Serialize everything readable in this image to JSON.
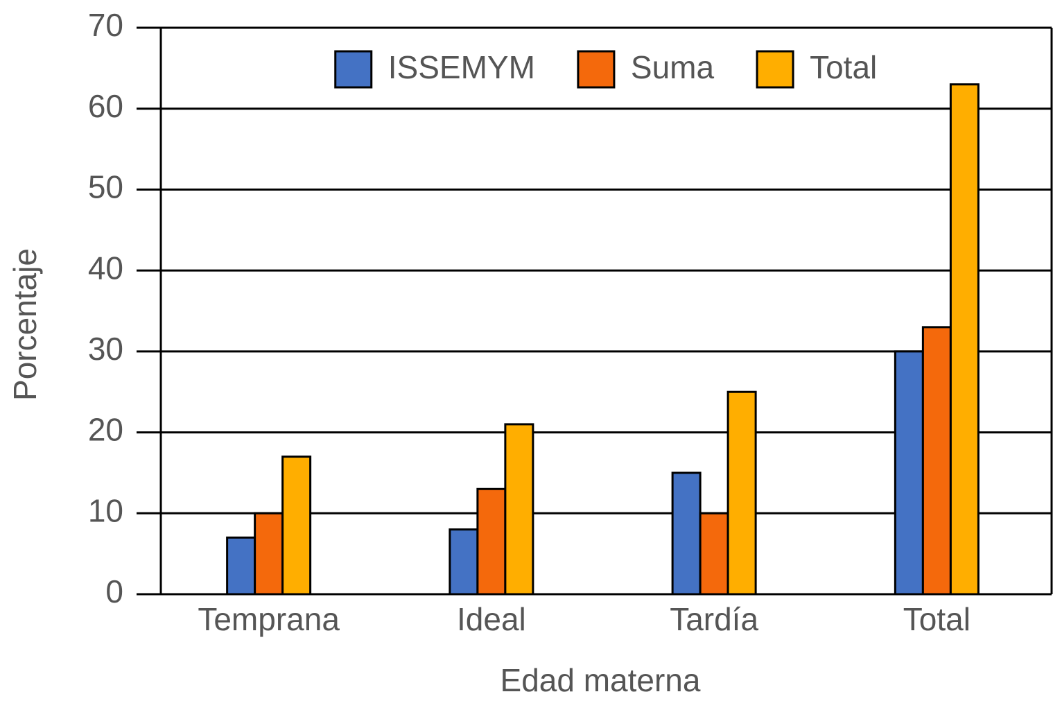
{
  "chart_data": {
    "type": "bar",
    "x_label": "Edad materna",
    "y_label": "Porcentaje",
    "categories": [
      "Temprana",
      "Ideal",
      "Tardía",
      "Total"
    ],
    "series": [
      {
        "name": "ISSEMYM",
        "color": "#4472c4",
        "values": [
          7,
          8,
          15,
          30
        ]
      },
      {
        "name": "Suma",
        "color": "#f4690c",
        "values": [
          10,
          13,
          10,
          33
        ]
      },
      {
        "name": "Total",
        "color": "#ffae00",
        "values": [
          17,
          21,
          25,
          63
        ]
      }
    ],
    "ylim": [
      0,
      70
    ],
    "yticks": [
      0,
      10,
      20,
      30,
      40,
      50,
      60,
      70
    ],
    "grid": true,
    "legend": "top"
  }
}
